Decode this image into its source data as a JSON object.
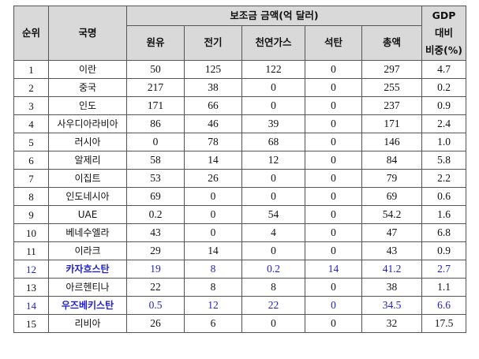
{
  "table": {
    "headers": {
      "rank": "순위",
      "country": "국명",
      "subsidy_group": "보조금 금액(억 달러)",
      "oil": "원유",
      "electricity": "전기",
      "natural_gas": "천연가스",
      "coal": "석탄",
      "total": "총액",
      "gdp_line1": "GDP",
      "gdp_line2": "대비",
      "gdp_line3": "비중(%)"
    },
    "highlight_color": "#1f1fd1",
    "rows": [
      {
        "rank": "1",
        "country": "이란",
        "oil": "50",
        "electricity": "125",
        "natural_gas": "122",
        "coal": "0",
        "total": "297",
        "gdp": "4.7",
        "highlight": false
      },
      {
        "rank": "2",
        "country": "중국",
        "oil": "217",
        "electricity": "38",
        "natural_gas": "0",
        "coal": "0",
        "total": "255",
        "gdp": "0.2",
        "highlight": false
      },
      {
        "rank": "3",
        "country": "인도",
        "oil": "171",
        "electricity": "66",
        "natural_gas": "0",
        "coal": "0",
        "total": "237",
        "gdp": "0.9",
        "highlight": false
      },
      {
        "rank": "4",
        "country": "사우디아라비아",
        "oil": "86",
        "electricity": "46",
        "natural_gas": "39",
        "coal": "0",
        "total": "171",
        "gdp": "2.4",
        "highlight": false
      },
      {
        "rank": "5",
        "country": "러시아",
        "oil": "0",
        "electricity": "78",
        "natural_gas": "68",
        "coal": "0",
        "total": "146",
        "gdp": "1.0",
        "highlight": false
      },
      {
        "rank": "6",
        "country": "알제리",
        "oil": "58",
        "electricity": "14",
        "natural_gas": "12",
        "coal": "0",
        "total": "84",
        "gdp": "5.8",
        "highlight": false
      },
      {
        "rank": "7",
        "country": "이집트",
        "oil": "53",
        "electricity": "26",
        "natural_gas": "0",
        "coal": "0",
        "total": "79",
        "gdp": "2.2",
        "highlight": false
      },
      {
        "rank": "8",
        "country": "인도네시아",
        "oil": "69",
        "electricity": "0",
        "natural_gas": "0",
        "coal": "0",
        "total": "69",
        "gdp": "0.6",
        "highlight": false
      },
      {
        "rank": "9",
        "country": "UAE",
        "oil": "0.2",
        "electricity": "0",
        "natural_gas": "54",
        "coal": "0",
        "total": "54.2",
        "gdp": "1.6",
        "highlight": false
      },
      {
        "rank": "10",
        "country": "베네수엘라",
        "oil": "43",
        "electricity": "0",
        "natural_gas": "4",
        "coal": "0",
        "total": "47",
        "gdp": "6.8",
        "highlight": false
      },
      {
        "rank": "11",
        "country": "이라크",
        "oil": "29",
        "electricity": "14",
        "natural_gas": "0",
        "coal": "0",
        "total": "43",
        "gdp": "0.9",
        "highlight": false
      },
      {
        "rank": "12",
        "country": "카자흐스탄",
        "oil": "19",
        "electricity": "8",
        "natural_gas": "0.2",
        "coal": "14",
        "total": "41.2",
        "gdp": "2.7",
        "highlight": true
      },
      {
        "rank": "13",
        "country": "아르헨티나",
        "oil": "22",
        "electricity": "8",
        "natural_gas": "8",
        "coal": "0",
        "total": "38",
        "gdp": "1.1",
        "highlight": false
      },
      {
        "rank": "14",
        "country": "우즈베키스탄",
        "oil": "0.5",
        "electricity": "12",
        "natural_gas": "22",
        "coal": "0",
        "total": "34.5",
        "gdp": "6.6",
        "highlight": true
      },
      {
        "rank": "15",
        "country": "리비아",
        "oil": "26",
        "electricity": "6",
        "natural_gas": "0",
        "coal": "0",
        "total": "32",
        "gdp": "17.5",
        "highlight": false
      }
    ]
  }
}
